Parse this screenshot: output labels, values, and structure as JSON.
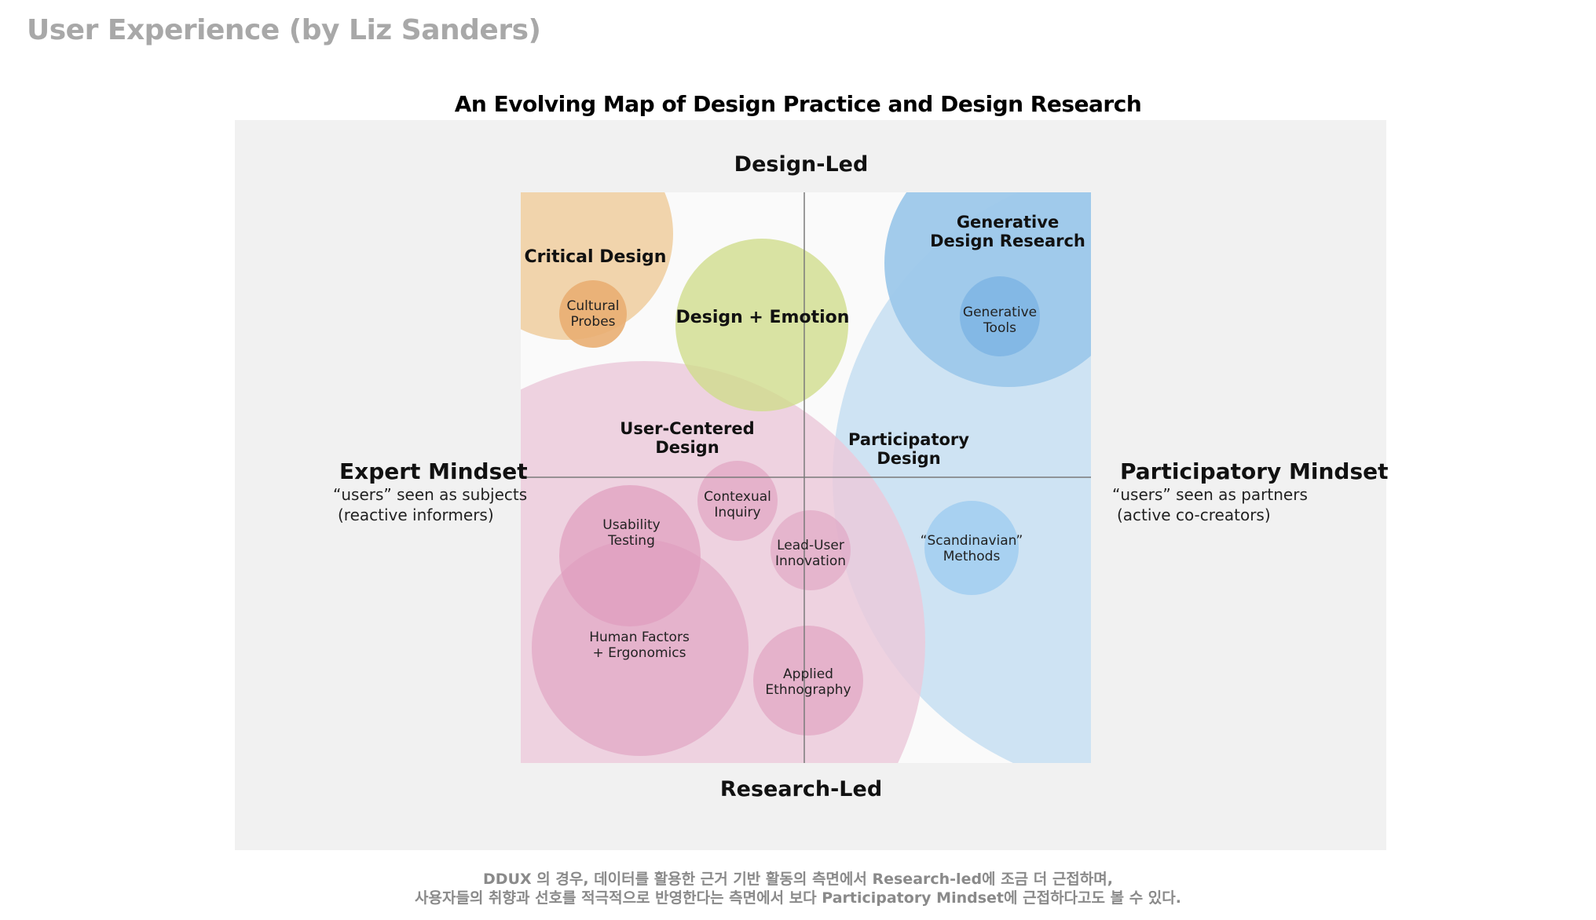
{
  "page_heading": "User Experience (by Liz Sanders)",
  "figure_title": "An Evolving Map of Design Practice and Design Research",
  "axes": {
    "top": "Design-Led",
    "bottom": "Research-Led",
    "left_title": "Expert Mindset",
    "left_sub_1": "“users” seen as subjects",
    "left_sub_2": "(reactive informers)",
    "right_title": "Participatory Mindset",
    "right_sub_1": "“users” seen as partners",
    "right_sub_2": "(active co-creators)"
  },
  "regions": {
    "critical_design": "Critical Design",
    "design_emotion": "Design + Emotion",
    "generative_research_1": "Generative",
    "generative_research_2": "Design Research",
    "user_centered_1": "User-Centered",
    "user_centered_2": "Design",
    "participatory_1": "Participatory",
    "participatory_2": "Design"
  },
  "methods": {
    "cultural_probes_1": "Cultural",
    "cultural_probes_2": "Probes",
    "generative_tools_1": "Generative",
    "generative_tools_2": "Tools",
    "usability_1": "Usability",
    "usability_2": "Testing",
    "contextual_1": "Contexual",
    "contextual_2": "Inquiry",
    "lead_user_1": "Lead-User",
    "lead_user_2": "Innovation",
    "scandinavian_1": "“Scandinavian”",
    "scandinavian_2": "Methods",
    "human_factors_1": "Human Factors",
    "human_factors_2": "+ Ergonomics",
    "ethnography_1": "Applied",
    "ethnography_2": "Ethnography"
  },
  "caption": {
    "line_1": "DDUX 의 경우, 데이터를 활용한 근거 기반 활동의 측면에서 Research-led에 조금 더 근접하며,",
    "line_2": "사용자들의 취향과 선호를 적극적으로 반영한다는 측면에서 보다 Participatory Mindset에 근접하다고도 볼 수 있다."
  },
  "colors": {
    "panel": "#f1f1f1",
    "critical": "#f0d2a8",
    "probes": "#e9ae72",
    "emotion": "#d6e09a",
    "generative": "#9dc8ea",
    "gen_tools": "#7fb6e4",
    "participatory": "#cbe2f2",
    "user_centered": "#ecc9da",
    "method_pink": "#e0a2bf",
    "scandinavian": "#a5d0f0"
  }
}
